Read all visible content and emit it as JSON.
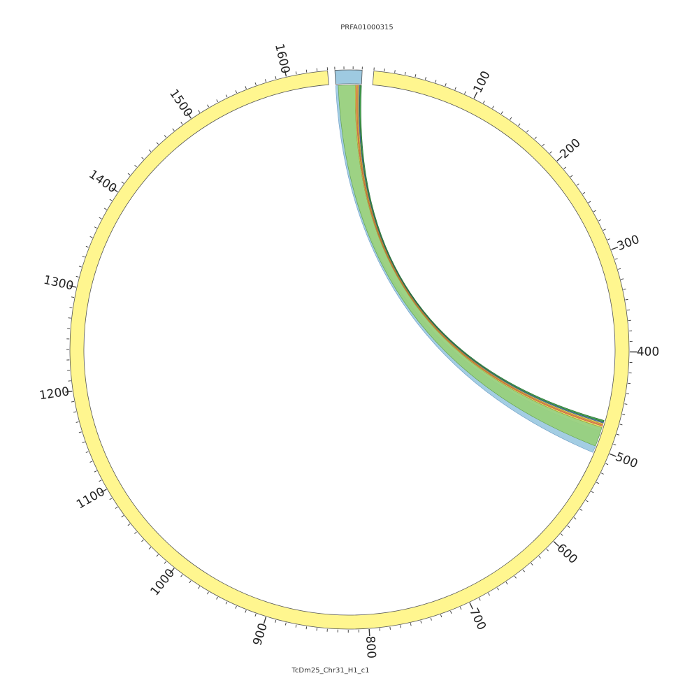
{
  "chart_data": {
    "type": "circos",
    "contigs": [
      {
        "name": "PRFA01000315",
        "length": 30,
        "color": "#9ecae1"
      },
      {
        "name": "TcDm25_Chr31_H1_c1",
        "length": 1640,
        "color": "#fff68f"
      }
    ],
    "major_tick_step": 100,
    "minor_tick_step": 10,
    "tick_labels": [
      "100",
      "200",
      "300",
      "400",
      "500",
      "600",
      "700",
      "800",
      "900",
      "1000",
      "1100",
      "1200",
      "1300",
      "1400",
      "1500",
      "1600"
    ],
    "links": [
      {
        "from": [
          0,
          3
        ],
        "to": [
          482,
          505
        ],
        "color": "#9ecae1",
        "stroke": "#6a9ac4"
      },
      {
        "from": [
          3,
          23
        ],
        "to": [
          478,
          498
        ],
        "color": "#98d07d",
        "stroke": "#5e9e47"
      },
      {
        "from": [
          23,
          24.2
        ],
        "to": [
          476.5,
          478
        ],
        "color": "#e8e46a",
        "stroke": "#a8a030"
      },
      {
        "from": [
          24.2,
          25.2
        ],
        "to": [
          475.5,
          476.5
        ],
        "color": "#f08060",
        "stroke": "#c05a40"
      },
      {
        "from": [
          25.2,
          26.2
        ],
        "to": [
          474.5,
          475.5
        ],
        "color": "#f0a050",
        "stroke": "#c07a30"
      },
      {
        "from": [
          26.2,
          27.4
        ],
        "to": [
          473.3,
          474.5
        ],
        "color": "#e8d860",
        "stroke": "#a89830"
      },
      {
        "from": [
          27.4,
          28.4
        ],
        "to": [
          472.2,
          473.3
        ],
        "color": "#5a82c8",
        "stroke": "#34508a"
      },
      {
        "from": [
          28.4,
          30
        ],
        "to": [
          470.5,
          472.2
        ],
        "color": "#3d9a4a",
        "stroke": "#246a30"
      }
    ]
  }
}
